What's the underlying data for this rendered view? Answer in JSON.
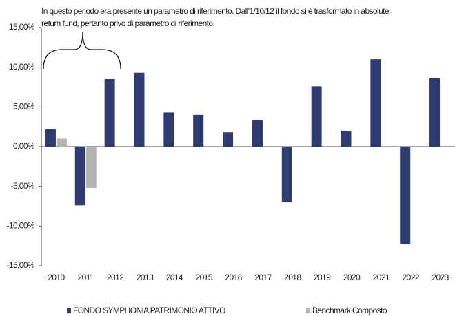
{
  "chart_data": {
    "type": "bar",
    "annotation": [
      "In questo periodo era presente un parametro di riferimento. Dall'1/10/12 il fondo si è trasformato in absolute",
      "return fund, pertanto privo di parametro di riferimento."
    ],
    "categories": [
      "2010",
      "2011",
      "2012",
      "2013",
      "2014",
      "2015",
      "2016",
      "2017",
      "2018",
      "2019",
      "2020",
      "2021",
      "2022",
      "2023"
    ],
    "series": [
      {
        "name": "FONDO SYMPHONIA PATRIMONIO ATTIVO",
        "color": "#2e3b6e",
        "values": [
          2.2,
          -7.4,
          8.5,
          9.3,
          4.3,
          4.0,
          1.8,
          3.3,
          -7.0,
          7.6,
          2.0,
          11.0,
          -12.3,
          8.6
        ]
      },
      {
        "name": "Benchmark Composto",
        "color": "#b4b4b4",
        "values": [
          1.0,
          -5.2,
          null,
          null,
          null,
          null,
          null,
          null,
          null,
          null,
          null,
          null,
          null,
          null
        ]
      }
    ],
    "ylim": [
      -15,
      15
    ],
    "yticks": [
      {
        "value": 15,
        "label": "15,00%"
      },
      {
        "value": 10,
        "label": "10,00%"
      },
      {
        "value": 5,
        "label": "5,00%"
      },
      {
        "value": 0,
        "label": "0,00%"
      },
      {
        "value": -5,
        "label": "-5,00%"
      },
      {
        "value": -10,
        "label": "-10,00%"
      },
      {
        "value": -15,
        "label": "-15,00%"
      }
    ]
  }
}
